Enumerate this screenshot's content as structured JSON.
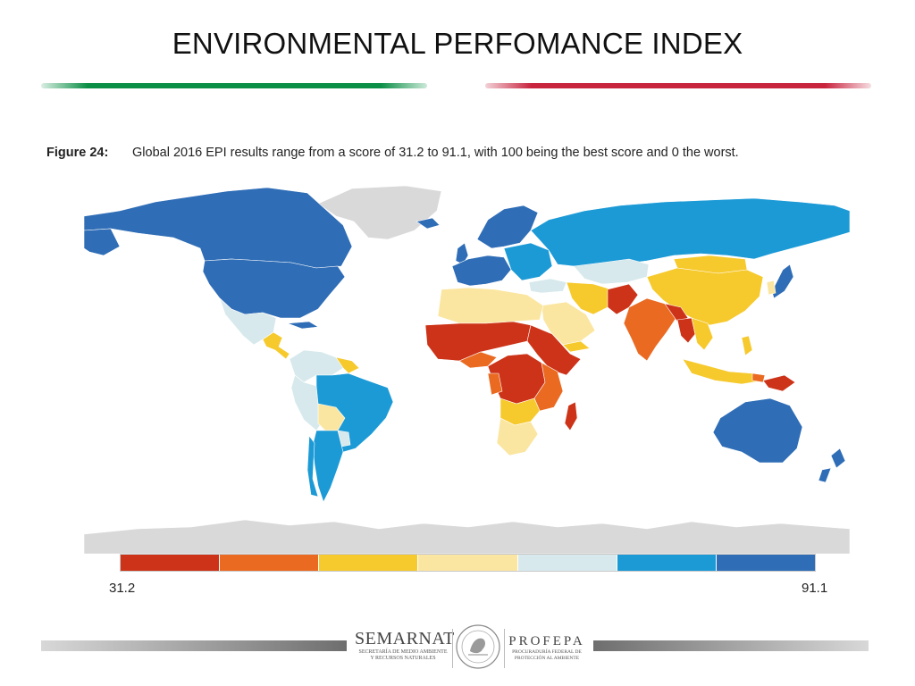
{
  "slide": {
    "title": "ENVIRONMENTAL PERFOMANCE INDEX",
    "rule_colors": [
      "#0b8f46",
      "#c8243e"
    ]
  },
  "figure": {
    "label": "Figure 24:",
    "caption": "Global 2016 EPI results range from a score of 31.2 to 91.1, with 100 being the best score and 0 the worst."
  },
  "map": {
    "colors": {
      "no_data": "#d9d9d9",
      "bin1": "#cc3318",
      "bin2": "#ea6a22",
      "bin3": "#f6c92d",
      "bin4": "#fbe6a1",
      "bin5": "#d7e9ec",
      "bin6": "#1c9ad6",
      "bin7": "#2f6db6"
    }
  },
  "legend": {
    "min_label": "31.2",
    "max_label": "91.1",
    "swatches": [
      "#cc3318",
      "#ea6a22",
      "#f6c92d",
      "#fbe6a1",
      "#d7e9ec",
      "#1c9ad6",
      "#2f6db6"
    ]
  },
  "footer": {
    "semarnat_name": "SEMARNAT",
    "semarnat_sub1": "SECRETARÍA DE MEDIO AMBIENTE",
    "semarnat_sub2": "Y RECURSOS NATURALES",
    "profepa_name": "PROFEPA",
    "profepa_sub1": "PROCURADURÍA FEDERAL DE",
    "profepa_sub2": "PROTECCIÓN AL AMBIENTE"
  }
}
